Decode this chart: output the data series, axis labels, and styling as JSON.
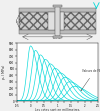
{
  "plot_bg": "#ffffff",
  "fig_bg": "#f0f0f0",
  "curve_color": "#00d8d8",
  "curve_linewidth": 0.5,
  "n_curves": 10,
  "x_min": -0.5,
  "x_max": 2.5,
  "y_min": 0,
  "y_max": 900,
  "xlabel": "Les cotes sont en millimetres.",
  "ylabel": "pc (MPa)",
  "legend_text": "Valeurs de FE (kN)",
  "peak_shifts": [
    0.0,
    0.18,
    0.36,
    0.54,
    0.72,
    0.9,
    1.08,
    1.26,
    1.44,
    1.62
  ],
  "peak_heights": [
    860,
    790,
    720,
    650,
    580,
    510,
    440,
    370,
    300,
    230
  ],
  "widths": [
    0.18,
    0.2,
    0.22,
    0.24,
    0.26,
    0.28,
    0.3,
    0.32,
    0.34,
    0.36
  ],
  "top_ratio": 0.4,
  "bottom_ratio": 0.6,
  "hatch_color": "#aaaaaa",
  "plate_color": "#cccccc",
  "bolt_color": "#bbbbbb",
  "dim_color": "#444444"
}
